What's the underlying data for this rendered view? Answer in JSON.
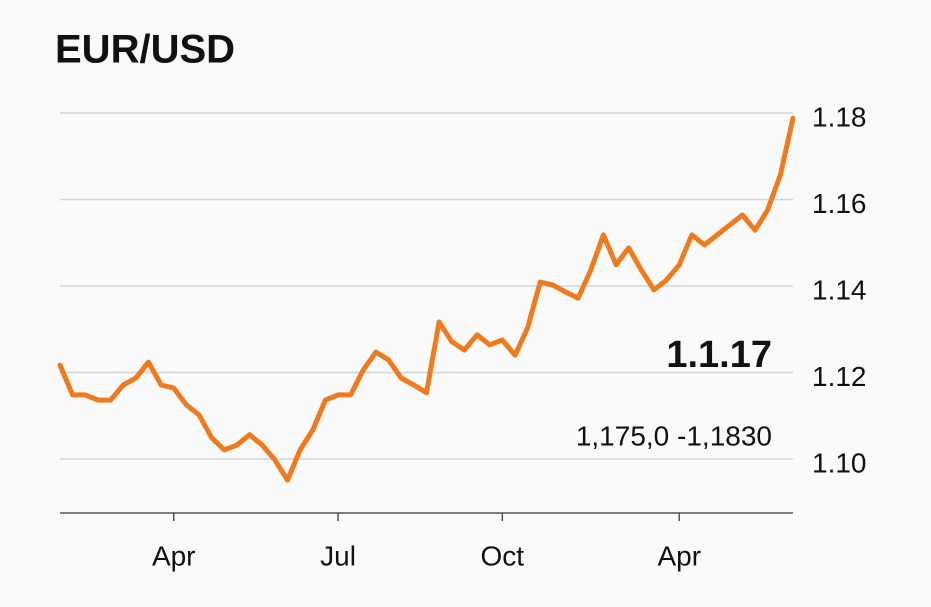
{
  "chart_data": {
    "type": "line",
    "title": "EUR/USD",
    "annotations": [
      "1.1.17",
      "1,175,0 -1,1830"
    ],
    "categories": [
      null,
      null,
      null,
      null,
      null,
      null,
      null,
      null,
      null,
      "Apr",
      null,
      null,
      null,
      null,
      null,
      null,
      null,
      null,
      null,
      null,
      null,
      null,
      "Jul",
      null,
      null,
      null,
      null,
      null,
      null,
      null,
      null,
      null,
      null,
      null,
      null,
      "Oct",
      null,
      null,
      null,
      null,
      null,
      null,
      null,
      null,
      null,
      null,
      null,
      null,
      null,
      "Apr",
      null,
      null,
      null,
      null,
      null,
      null,
      null,
      null,
      null
    ],
    "series": [
      {
        "name": "EUR/USD",
        "color": "#f07a1e",
        "values": [
          1.1217,
          1.1148,
          1.1148,
          1.1136,
          1.1136,
          1.1171,
          1.1187,
          1.1224,
          1.1171,
          1.1164,
          1.1125,
          1.1102,
          1.1049,
          1.1021,
          1.1032,
          1.1056,
          1.1032,
          1.0998,
          1.0951,
          1.1021,
          1.1067,
          1.1136,
          1.1148,
          1.1148,
          1.1206,
          1.1247,
          1.1229,
          1.1187,
          1.1171,
          1.1153,
          1.1317,
          1.1271,
          1.1252,
          1.1287,
          1.1264,
          1.1275,
          1.124,
          1.1303,
          1.1409,
          1.1402,
          1.1386,
          1.1372,
          1.1437,
          1.1518,
          1.1449,
          1.1488,
          1.1437,
          1.1391,
          1.1414,
          1.1449,
          1.1518,
          1.1495,
          1.1518,
          1.1541,
          1.1564,
          1.1529,
          1.1576,
          1.1657,
          1.1788
        ]
      }
    ],
    "ylim": [
      1.0875,
      1.183
    ],
    "yticks": [
      1.18,
      1.16,
      1.14,
      1.12,
      {
        "value": 1.1,
        "label": "1.10"
      }
    ],
    "grid": true
  }
}
